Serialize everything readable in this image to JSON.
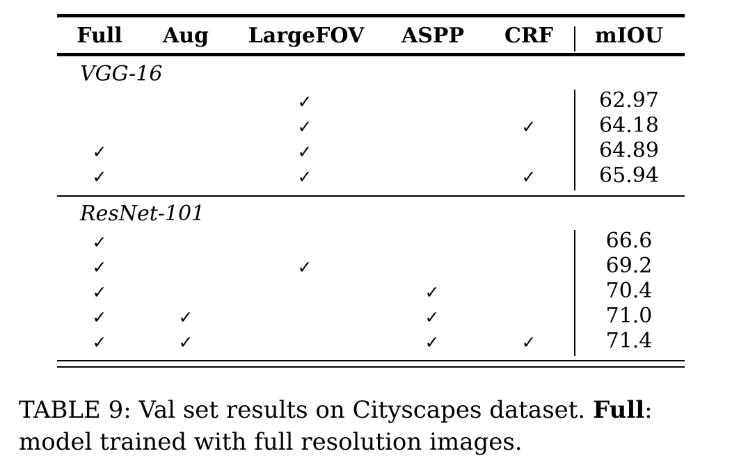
{
  "table": {
    "headers": [
      "Full",
      "Aug",
      "LargeFOV",
      "ASPP",
      "CRF",
      "mIOU"
    ],
    "check_mark": "✓",
    "groups": [
      {
        "name": "VGG-16",
        "rows": [
          {
            "full": false,
            "aug": false,
            "largefov": true,
            "aspp": false,
            "crf": false,
            "miou": "62.97"
          },
          {
            "full": false,
            "aug": false,
            "largefov": true,
            "aspp": false,
            "crf": true,
            "miou": "64.18"
          },
          {
            "full": true,
            "aug": false,
            "largefov": true,
            "aspp": false,
            "crf": false,
            "miou": "64.89"
          },
          {
            "full": true,
            "aug": false,
            "largefov": true,
            "aspp": false,
            "crf": true,
            "miou": "65.94"
          }
        ]
      },
      {
        "name": "ResNet-101",
        "rows": [
          {
            "full": true,
            "aug": false,
            "largefov": false,
            "aspp": false,
            "crf": false,
            "miou": "66.6"
          },
          {
            "full": true,
            "aug": false,
            "largefov": true,
            "aspp": false,
            "crf": false,
            "miou": "69.2"
          },
          {
            "full": true,
            "aug": false,
            "largefov": false,
            "aspp": true,
            "crf": false,
            "miou": "70.4"
          },
          {
            "full": true,
            "aug": true,
            "largefov": false,
            "aspp": true,
            "crf": false,
            "miou": "71.0"
          },
          {
            "full": true,
            "aug": true,
            "largefov": false,
            "aspp": true,
            "crf": true,
            "miou": "71.4"
          }
        ]
      }
    ]
  },
  "caption": {
    "prefix": "TABLE 9: Val set results on Cityscapes dataset. ",
    "bold": "Full",
    "suffix": ": model trained with full resolution images."
  }
}
